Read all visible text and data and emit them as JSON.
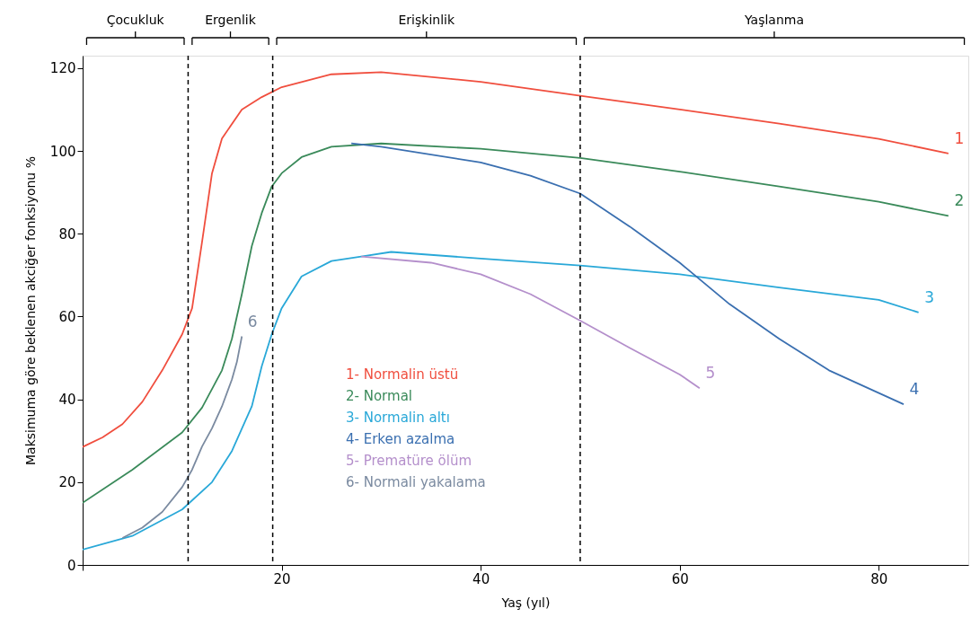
{
  "chart_data": {
    "type": "line",
    "xlabel": "Yaş (yıl)",
    "ylabel": "Maksimuma göre beklenen akciğer fonksiyonu %",
    "xlim": [
      0,
      89
    ],
    "ylim": [
      0,
      123
    ],
    "xticks": [
      {
        "value": 0,
        "label": null
      },
      20,
      40,
      60,
      80
    ],
    "yticks": [
      0,
      20,
      40,
      60,
      80,
      100,
      120
    ],
    "grid": false,
    "legend": "bottom",
    "marker": "none",
    "line_style": "solid",
    "series": [
      {
        "name": "1- Normalin üstü",
        "color": "#f04e3e",
        "x": [
          0,
          2,
          4,
          6,
          8,
          10,
          11,
          12,
          13,
          14,
          16,
          18,
          20,
          25,
          30,
          40,
          50,
          60,
          70,
          80,
          87
        ],
        "values": [
          28.5,
          30.8,
          34,
          39.4,
          47,
          55.7,
          62,
          78,
          94.6,
          103,
          110,
          113,
          115.4,
          118.5,
          119,
          116.7,
          113.3,
          110,
          106.6,
          102.9,
          99.4
        ]
      },
      {
        "name": "2- Normal",
        "color": "#3a8a5a",
        "x": [
          0,
          5,
          10,
          12,
          14,
          15,
          16,
          17,
          18,
          19,
          20,
          22,
          25,
          30,
          40,
          50,
          60,
          70,
          80,
          87
        ],
        "values": [
          15,
          23,
          32,
          38,
          47,
          54.6,
          65.4,
          77,
          85,
          91.4,
          94.6,
          98.5,
          101,
          101.8,
          100.5,
          98.3,
          95,
          91.4,
          87.7,
          84.3
        ]
      },
      {
        "name": "3- Normalin altı",
        "color": "#29a8d8",
        "x": [
          0,
          5,
          10,
          13,
          15,
          17,
          18,
          19,
          20,
          22,
          25,
          28,
          31,
          40,
          50,
          60,
          70,
          80,
          84
        ],
        "values": [
          3.7,
          7,
          13.4,
          20,
          27.5,
          38.3,
          48,
          55.7,
          62,
          69.7,
          73.4,
          74.5,
          75.6,
          74,
          72.3,
          70.2,
          67,
          64,
          61
        ]
      },
      {
        "name": "4- Erken azalma",
        "color": "#3a6fb0",
        "x": [
          27,
          30,
          40,
          45,
          50,
          55,
          60,
          65,
          70,
          75,
          82.5
        ],
        "values": [
          101.8,
          101,
          97.2,
          94,
          89.7,
          81.7,
          73,
          63,
          54.6,
          47,
          38.8
        ]
      },
      {
        "name": "5- Prematüre ölüm",
        "color": "#b48fcb",
        "x": [
          28,
          35,
          40,
          45,
          50,
          55,
          60,
          62
        ],
        "values": [
          74.5,
          73,
          70.2,
          65.4,
          59,
          52.4,
          46,
          42.7
        ]
      },
      {
        "name": "6- Normali yakalama",
        "color": "#7a8aa0",
        "x": [
          4,
          6,
          8,
          10,
          11,
          12,
          13,
          14,
          15,
          15.5,
          16
        ],
        "values": [
          6.5,
          9,
          12.8,
          18.8,
          23,
          28.6,
          33,
          38.3,
          44.8,
          49,
          55.2
        ]
      }
    ],
    "ref_lines": [
      {
        "axis": "x",
        "value": 10.6,
        "line_style": "dashed",
        "color": "#000000"
      },
      {
        "axis": "x",
        "value": 19.1,
        "line_style": "dashed",
        "color": "#000000"
      },
      {
        "axis": "x",
        "value": 50,
        "line_style": "dashed",
        "color": "#000000"
      }
    ],
    "annotations": [
      "Çocukluk",
      "Ergenlik",
      "Erişkinlik",
      "Yaşlanma",
      "1",
      "2",
      "3",
      "4",
      "5",
      "6"
    ]
  }
}
